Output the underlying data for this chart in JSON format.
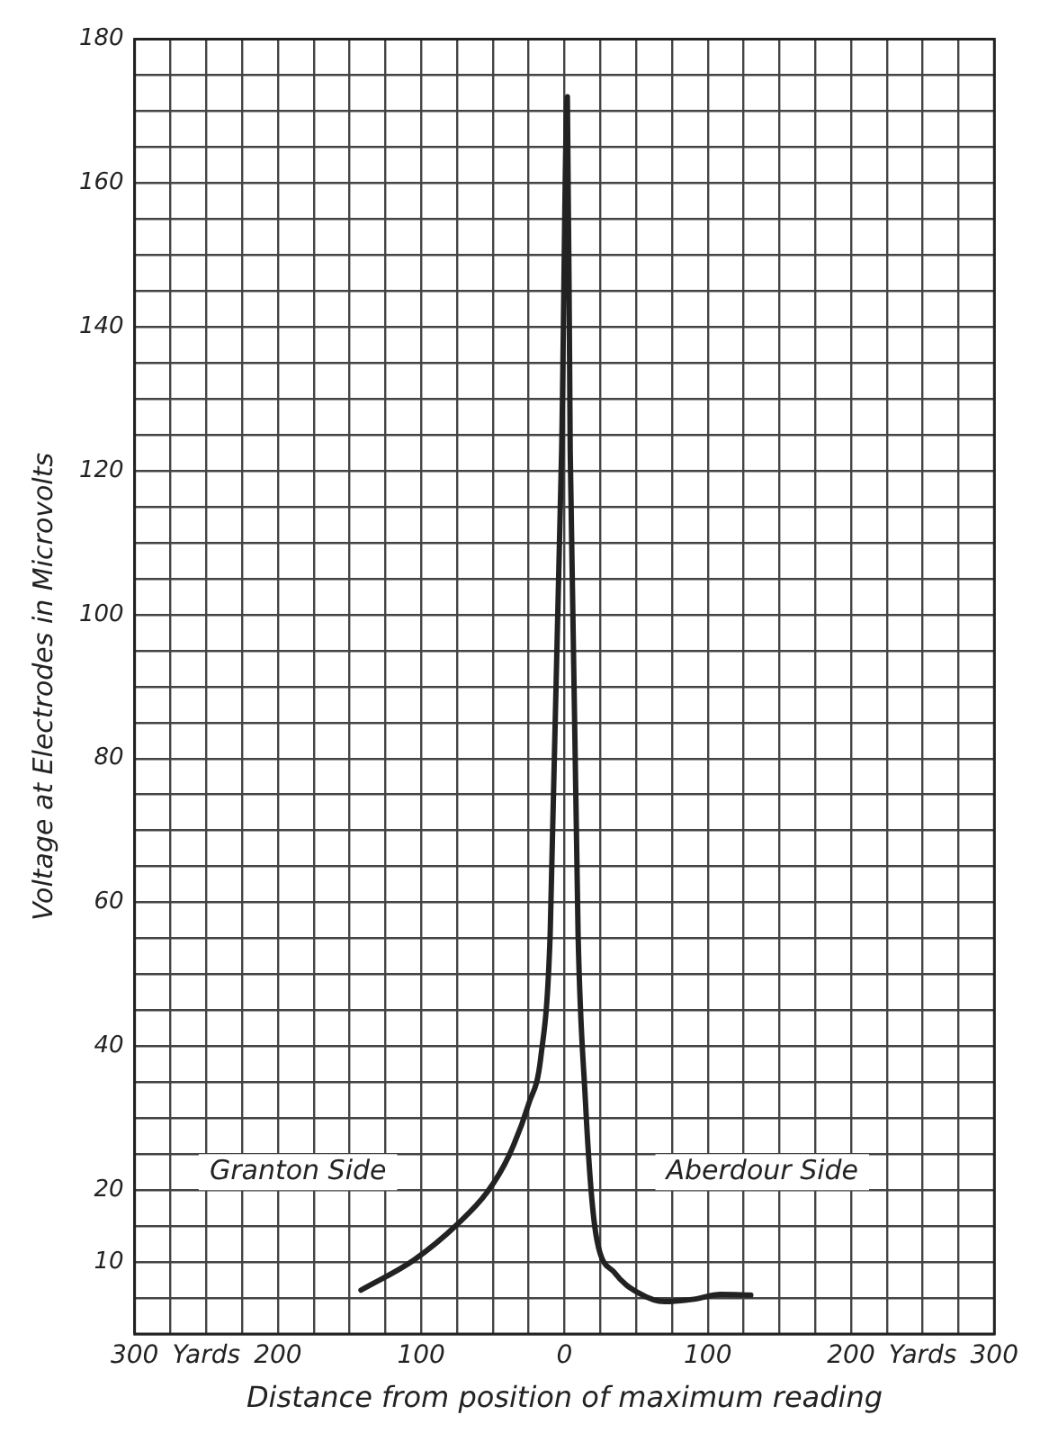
{
  "chart_data": {
    "type": "line",
    "xlabel": "Distance from position of maximum reading",
    "ylabel": "Voltage at Electrodes in Microvolts",
    "annotations": [
      "Granton Side",
      "Aberdour Side"
    ],
    "series": [
      {
        "color": "#222222",
        "x": [
          -142,
          -105,
          -74,
          -54,
          -39,
          -25,
          -16.5,
          -10,
          -2,
          2,
          4,
          9.5,
          14.5,
          18.6,
          22.7,
          35,
          51.7,
          70,
          89,
          109,
          130
        ],
        "values": [
          6.1,
          10.3,
          15.4,
          19.7,
          24.7,
          32,
          38.5,
          55.5,
          122.7,
          172,
          122.7,
          55.5,
          32.8,
          19.9,
          13,
          8.5,
          5.7,
          4.5,
          4.8,
          5.5,
          5.4
        ]
      }
    ],
    "xlim": [
      -300,
      300
    ],
    "xticks": [
      {
        "value": -300,
        "label": "300"
      },
      {
        "value": -275,
        "label": null
      },
      {
        "value": -250,
        "label": "Yards"
      },
      {
        "value": -225,
        "label": null
      },
      {
        "value": -200,
        "label": "200"
      },
      {
        "value": -175,
        "label": null
      },
      {
        "value": -150,
        "label": null
      },
      {
        "value": -125,
        "label": null
      },
      {
        "value": -100,
        "label": "100"
      },
      {
        "value": -75,
        "label": null
      },
      {
        "value": -50,
        "label": null
      },
      {
        "value": -25,
        "label": null
      },
      0,
      {
        "value": 25,
        "label": null
      },
      {
        "value": 50,
        "label": null
      },
      {
        "value": 75,
        "label": null
      },
      100,
      {
        "value": 125,
        "label": null
      },
      {
        "value": 150,
        "label": null
      },
      {
        "value": 175,
        "label": null
      },
      200,
      {
        "value": 225,
        "label": null
      },
      {
        "value": 250,
        "label": "Yards"
      },
      {
        "value": 275,
        "label": null
      },
      300
    ],
    "ylim": [
      0,
      180
    ],
    "yticks": [
      {
        "value": 0,
        "label": null
      },
      {
        "value": 5,
        "label": null
      },
      10,
      {
        "value": 15,
        "label": null
      },
      20,
      {
        "value": 25,
        "label": null
      },
      {
        "value": 30,
        "label": null
      },
      {
        "value": 35,
        "label": null
      },
      40,
      {
        "value": 45,
        "label": null
      },
      {
        "value": 50,
        "label": null
      },
      {
        "value": 55,
        "label": null
      },
      60,
      {
        "value": 65,
        "label": null
      },
      {
        "value": 70,
        "label": null
      },
      {
        "value": 75,
        "label": null
      },
      80,
      {
        "value": 85,
        "label": null
      },
      {
        "value": 90,
        "label": null
      },
      {
        "value": 95,
        "label": null
      },
      100,
      {
        "value": 105,
        "label": null
      },
      {
        "value": 110,
        "label": null
      },
      {
        "value": 115,
        "label": null
      },
      120,
      {
        "value": 125,
        "label": null
      },
      {
        "value": 130,
        "label": null
      },
      {
        "value": 135,
        "label": null
      },
      140,
      {
        "value": 145,
        "label": null
      },
      {
        "value": 150,
        "label": null
      },
      {
        "value": 155,
        "label": null
      },
      160,
      {
        "value": 165,
        "label": null
      },
      {
        "value": 170,
        "label": null
      },
      {
        "value": 175,
        "label": null
      },
      180
    ],
    "grid": true,
    "legend": false,
    "marker": "none",
    "line_style": "solid"
  }
}
